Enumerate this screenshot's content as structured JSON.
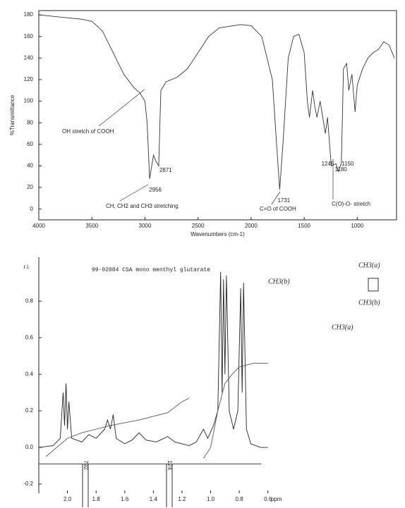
{
  "chart_data": [
    {
      "type": "line",
      "x_label": "Wavenumbers (cm-1)",
      "y_label": "%Transmittance",
      "xlim": [
        4000,
        630
      ],
      "ylim": [
        -10,
        184
      ],
      "xticks": [
        4000,
        3500,
        3000,
        2500,
        2000,
        1500,
        1000
      ],
      "yticks": [
        0,
        20,
        40,
        60,
        80,
        100,
        120,
        140,
        160,
        180
      ],
      "series": [
        {
          "color": "#333333",
          "x": [
            4000,
            3800,
            3600,
            3500,
            3400,
            3300,
            3200,
            3100,
            3050,
            3000,
            2980,
            2956,
            2920,
            2900,
            2871,
            2850,
            2800,
            2700,
            2600,
            2500,
            2400,
            2300,
            2100,
            2000,
            1900,
            1800,
            1760,
            1731,
            1700,
            1650,
            1600,
            1550,
            1500,
            1470,
            1450,
            1420,
            1400,
            1380,
            1350,
            1300,
            1280,
            1245,
            1200,
            1180,
            1150,
            1130,
            1100,
            1080,
            1050,
            1020,
            1000,
            950,
            900,
            850,
            800,
            750,
            700,
            650
          ],
          "values": [
            180,
            178,
            176,
            174,
            165,
            145,
            125,
            112,
            108,
            100,
            80,
            28,
            50,
            45,
            40,
            110,
            118,
            122,
            130,
            145,
            160,
            168,
            171,
            170,
            160,
            120,
            60,
            18,
            60,
            140,
            160,
            162,
            145,
            100,
            85,
            110,
            95,
            85,
            100,
            70,
            85,
            40,
            42,
            35,
            42,
            130,
            135,
            110,
            125,
            90,
            115,
            130,
            140,
            145,
            148,
            155,
            152,
            140
          ]
        }
      ],
      "peak_labels": [
        2956,
        2871,
        1731,
        1245,
        1150,
        1180
      ],
      "annotations": [
        "OH stretch of COOH",
        "CH, CH2 and CH3 stretching",
        "C=O of COOH",
        "C(O)-O- stretch"
      ]
    },
    {
      "type": "line",
      "title": "99-02084 CSA mono menthyl glutarate",
      "x_label": "ppm",
      "y_label": "r.i.",
      "xlim": [
        2.2,
        0.5
      ],
      "ylim": [
        -0.25,
        1.04
      ],
      "xticks": [
        {
          "value": 2.0,
          "label": "2.0"
        },
        1.8,
        1.6,
        1.4,
        1.2,
        {
          "value": 1.0,
          "label": "1.0"
        },
        0.8,
        0.6
      ],
      "yticks": [
        -0.2,
        {
          "value": 0.0,
          "label": "0.0"
        },
        0.2,
        0.4,
        0.6,
        0.8
      ],
      "series": [
        {
          "color": "#222222",
          "x": [
            2.2,
            2.1,
            2.05,
            2.03,
            2.02,
            2.01,
            2.0,
            1.99,
            1.97,
            1.9,
            1.85,
            1.8,
            1.74,
            1.72,
            1.7,
            1.68,
            1.66,
            1.6,
            1.55,
            1.5,
            1.45,
            1.38,
            1.3,
            1.25,
            1.15,
            1.1,
            1.05,
            1.02,
            0.98,
            0.95,
            0.93,
            0.92,
            0.91,
            0.9,
            0.89,
            0.87,
            0.84,
            0.81,
            0.79,
            0.78,
            0.77,
            0.75,
            0.72,
            0.65,
            0.6
          ],
          "values": [
            0.0,
            0.01,
            0.05,
            0.3,
            0.12,
            0.35,
            0.1,
            0.25,
            0.05,
            0.03,
            0.07,
            0.05,
            0.1,
            0.15,
            0.1,
            0.18,
            0.05,
            0.02,
            0.04,
            0.08,
            0.04,
            0.03,
            0.06,
            0.03,
            0.01,
            0.03,
            0.1,
            0.05,
            0.12,
            0.2,
            0.96,
            0.3,
            0.92,
            0.4,
            0.94,
            0.2,
            0.1,
            0.2,
            0.87,
            0.3,
            0.9,
            0.1,
            0.02,
            0.0,
            0.0
          ]
        },
        {
          "color": "#555555",
          "x": [
            2.15,
            2.0,
            1.9,
            1.7,
            1.5,
            1.3,
            1.2,
            1.15,
            1.1,
            1.05,
            1.0,
            0.95,
            0.9,
            0.85,
            0.8,
            0.7,
            0.6
          ],
          "values": [
            -0.05,
            0.05,
            0.08,
            0.12,
            0.15,
            0.19,
            0.25,
            0.27,
            null,
            -0.06,
            0.0,
            0.2,
            0.35,
            0.4,
            0.44,
            0.46,
            0.46
          ]
        }
      ],
      "annotations": [
        "CH3(a)",
        "CH3(b)",
        "CH3(b)",
        "CH3(a)",
        "792",
        "124"
      ]
    }
  ]
}
